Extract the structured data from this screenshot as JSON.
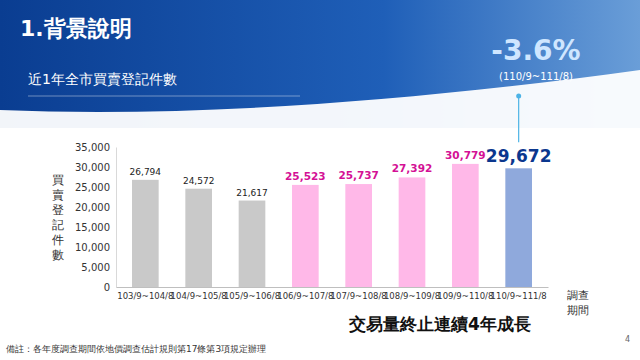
{
  "chart_data": {
    "type": "bar",
    "title": "1.背景說明",
    "subtitle": "近1年全市買賣登記件數",
    "y_label": "買賣登記件數",
    "x_label": "調查期間",
    "annotations": [
      "-3.6%",
      "(110/9~111/8)",
      "交易量終止連續4年成長"
    ],
    "note": "備註：各年度調查期間依地價調查估計規則第17條第3項規定辦理",
    "page": "4",
    "categories": [
      "103/9~104/8",
      "104/9~105/8",
      "105/9~106/8",
      "106/9~107/8",
      "107/9~108/8",
      "108/9~109/8",
      "109/9~110/8",
      "110/9~111/8"
    ],
    "values": [
      26794,
      24572,
      21617,
      25523,
      25737,
      27392,
      30779,
      29672
    ],
    "value_labels": [
      "26,794",
      "24,572",
      "21,617",
      "25,523",
      "25,737",
      "27,392",
      "30,779",
      "29,672"
    ],
    "colors": [
      "#c9c9c9",
      "#c9c9c9",
      "#c9c9c9",
      "#ffb8e8",
      "#ffb8e8",
      "#ffb8e8",
      "#ffb8e8",
      "#8fa9dc"
    ],
    "ylim": [
      0,
      35000
    ],
    "yticks": [
      0,
      {
        "value": 5000,
        "label": "5,000"
      },
      {
        "value": 10000,
        "label": "10,000"
      },
      {
        "value": 15000,
        "label": "15,000"
      },
      {
        "value": 20000,
        "label": "20,000"
      },
      {
        "value": 25000,
        "label": "25,000"
      },
      {
        "value": 30000,
        "label": "30,000"
      },
      {
        "value": 35000,
        "label": "35,000"
      }
    ],
    "grid": false,
    "data_labels": true
  }
}
